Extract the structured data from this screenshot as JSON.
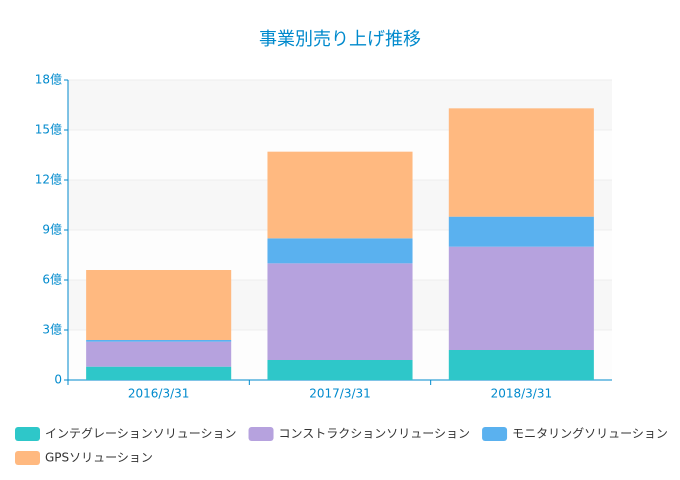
{
  "chart_data": {
    "type": "stacked-bar",
    "title": "事業別売り上げ推移",
    "categories": [
      "2016/3/31",
      "2017/3/31",
      "2018/3/31"
    ],
    "series": [
      {
        "name": "インテグレーションソリューション",
        "color": "#2ec7c9",
        "values": [
          0.8,
          1.2,
          1.8
        ]
      },
      {
        "name": "コンストラクションソリューション",
        "color": "#b6a2de",
        "values": [
          1.5,
          5.8,
          6.2
        ]
      },
      {
        "name": "モニタリングソリューション",
        "color": "#5ab1ef",
        "values": [
          0.1,
          1.5,
          1.8
        ]
      },
      {
        "name": "GPSソリューション",
        "color": "#ffb980",
        "values": [
          4.2,
          5.2,
          6.5
        ]
      }
    ],
    "ylim": [
      0,
      18
    ],
    "yticks": [
      0,
      {
        "value": 3,
        "label": "3億"
      },
      {
        "value": 6,
        "label": "6億"
      },
      {
        "value": 9,
        "label": "9億"
      },
      {
        "value": 12,
        "label": "12億"
      },
      {
        "value": 15,
        "label": "15億"
      },
      {
        "value": 18,
        "label": "18億"
      }
    ],
    "grid": true,
    "axis_color": "#008acd",
    "legend": "bottom"
  }
}
